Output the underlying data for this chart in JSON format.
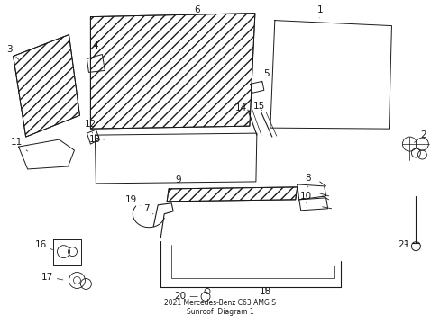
{
  "title": "2021 Mercedes-Benz C63 AMG S\nSunroof  Diagram 1",
  "bg": "#ffffff",
  "lc": "#1a1a1a",
  "tc": "#1a1a1a",
  "fw": 4.89,
  "fh": 3.6,
  "dpi": 100
}
